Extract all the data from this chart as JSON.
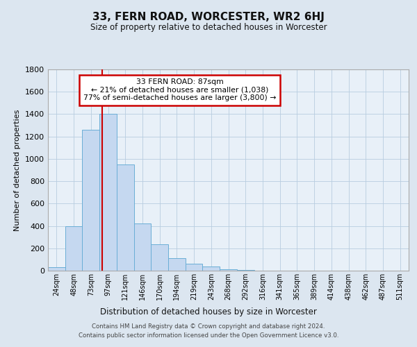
{
  "title": "33, FERN ROAD, WORCESTER, WR2 6HJ",
  "subtitle": "Size of property relative to detached houses in Worcester",
  "xlabel": "Distribution of detached houses by size in Worcester",
  "ylabel": "Number of detached properties",
  "bin_labels": [
    "24sqm",
    "48sqm",
    "73sqm",
    "97sqm",
    "121sqm",
    "146sqm",
    "170sqm",
    "194sqm",
    "219sqm",
    "243sqm",
    "268sqm",
    "292sqm",
    "316sqm",
    "341sqm",
    "365sqm",
    "389sqm",
    "414sqm",
    "438sqm",
    "462sqm",
    "487sqm",
    "511sqm"
  ],
  "bar_values": [
    30,
    400,
    1260,
    1400,
    950,
    420,
    235,
    110,
    65,
    40,
    15,
    5,
    2,
    0,
    0,
    0,
    0,
    0,
    0,
    0,
    0
  ],
  "bar_color": "#c5d8f0",
  "bar_edge_color": "#6aaed6",
  "vline_x_index": 3,
  "vline_color": "#cc0000",
  "annotation_title": "33 FERN ROAD: 87sqm",
  "annotation_line1": "← 21% of detached houses are smaller (1,038)",
  "annotation_line2": "77% of semi-detached houses are larger (3,800) →",
  "annotation_box_color": "#ffffff",
  "annotation_box_edge_color": "#cc0000",
  "ylim": [
    0,
    1800
  ],
  "yticks": [
    0,
    200,
    400,
    600,
    800,
    1000,
    1200,
    1400,
    1600,
    1800
  ],
  "n_bins": 21,
  "footer_line1": "Contains HM Land Registry data © Crown copyright and database right 2024.",
  "footer_line2": "Contains public sector information licensed under the Open Government Licence v3.0.",
  "bg_color": "#dce6f0",
  "plot_bg_color": "#e8f0f8"
}
